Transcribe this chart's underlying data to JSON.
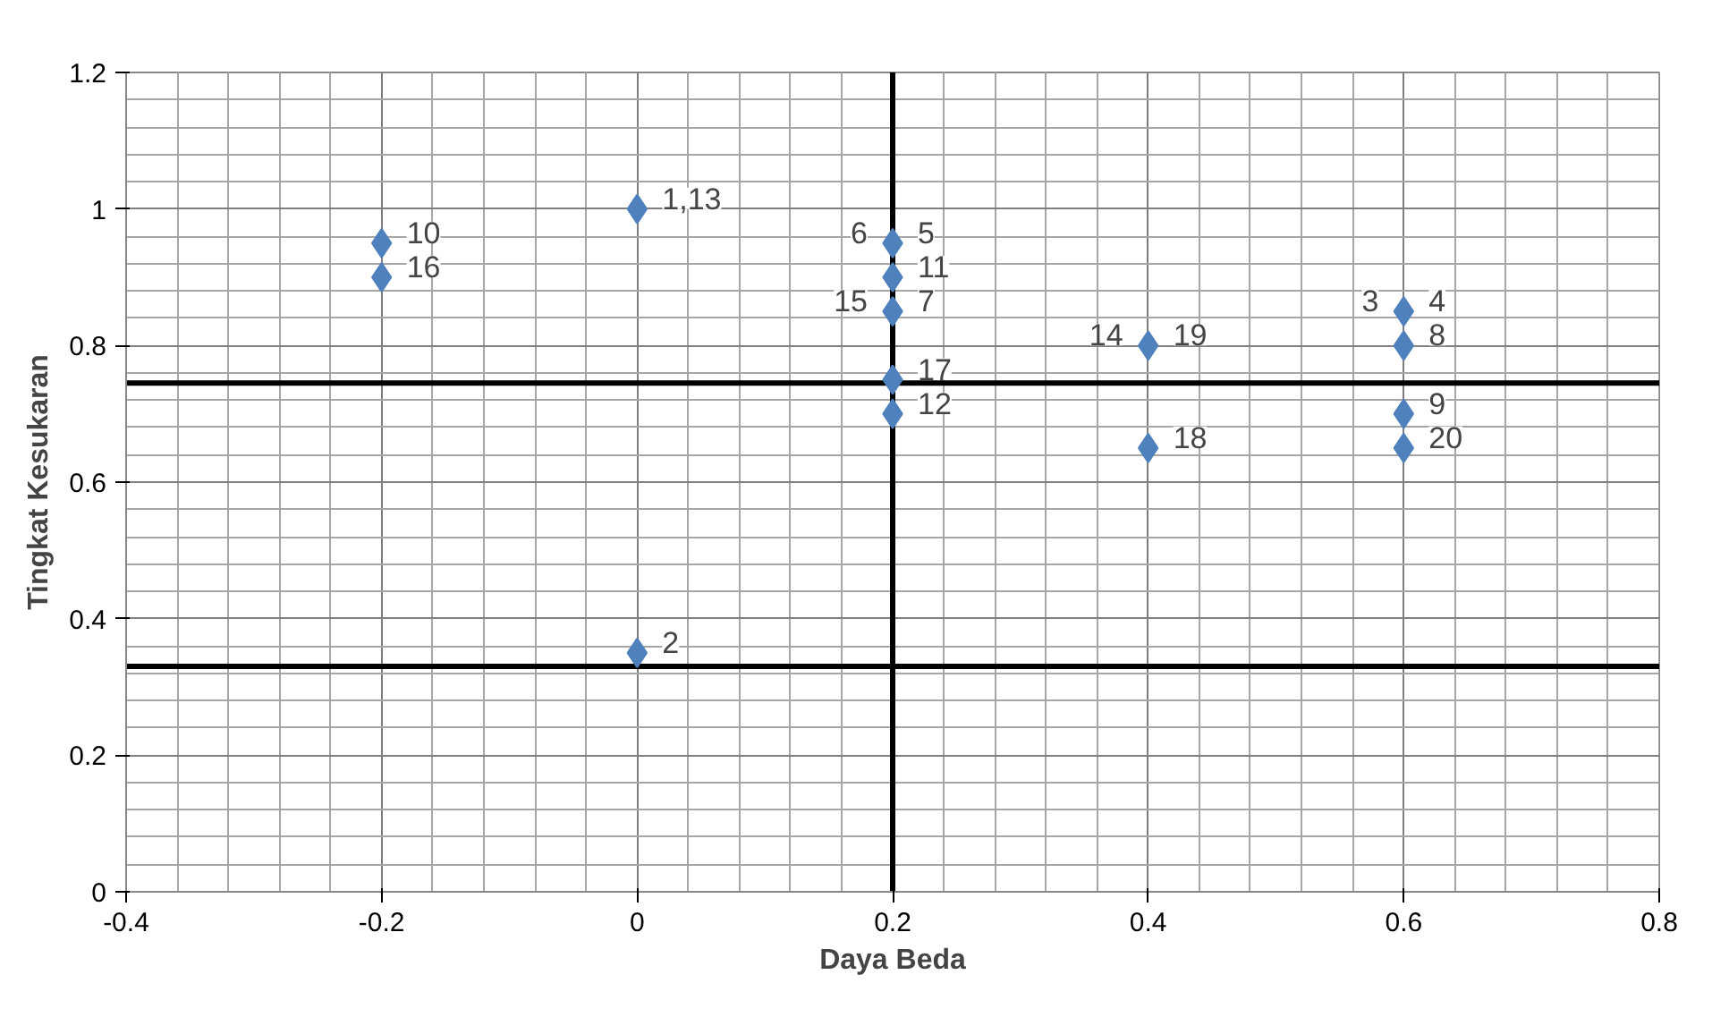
{
  "chart_data": {
    "type": "scatter",
    "xlabel": "Daya Beda",
    "ylabel": "Tingkat Kesukaran",
    "x": [
      -0.2,
      -0.2,
      0,
      0,
      0.2,
      0.2,
      0.2,
      0.2,
      0.2,
      0.4,
      0.4,
      0.6,
      0.6,
      0.6,
      0.6
    ],
    "values": [
      0.95,
      0.9,
      1,
      0.35,
      0.95,
      0.9,
      0.85,
      0.75,
      0.7,
      0.8,
      0.65,
      0.85,
      0.8,
      0.7,
      0.65
    ],
    "color": "#4f81bd",
    "marker": "diamond",
    "xlim": [
      -0.4,
      0.8
    ],
    "xticks": [
      -0.4,
      -0.2,
      0,
      0.2,
      0.4,
      0.6,
      0.8
    ],
    "ylim": [
      0,
      1.2
    ],
    "yticks": [
      0,
      0.2,
      0.4,
      0.6,
      0.8,
      1,
      1.2
    ],
    "grid": true,
    "ref_lines": [
      {
        "axis": "x",
        "value": 0.2,
        "color": "#000000"
      },
      {
        "axis": "y",
        "value": 0.745,
        "color": "#000000"
      },
      {
        "axis": "y",
        "value": 0.33,
        "color": "#000000"
      }
    ],
    "annotations": [
      {
        "text": "10",
        "x": -0.2,
        "y": 0.95
      },
      {
        "text": "16",
        "x": -0.2,
        "y": 0.9
      },
      {
        "text": "1,13",
        "x": 0,
        "y": 1
      },
      {
        "text": "5",
        "x": 0.2,
        "y": 0.95
      },
      {
        "text": "6",
        "x": 0.2,
        "y": 0.95
      },
      {
        "text": "11",
        "x": 0.2,
        "y": 0.9
      },
      {
        "text": "7",
        "x": 0.2,
        "y": 0.85
      },
      {
        "text": "15",
        "x": 0.2,
        "y": 0.85
      },
      {
        "text": "17",
        "x": 0.2,
        "y": 0.75
      },
      {
        "text": "12",
        "x": 0.2,
        "y": 0.7
      },
      {
        "text": "19",
        "x": 0.4,
        "y": 0.8
      },
      {
        "text": "14",
        "x": 0.4,
        "y": 0.8
      },
      {
        "text": "18",
        "x": 0.4,
        "y": 0.65
      },
      {
        "text": "4",
        "x": 0.6,
        "y": 0.85
      },
      {
        "text": "3",
        "x": 0.6,
        "y": 0.85
      },
      {
        "text": "8",
        "x": 0.6,
        "y": 0.8
      },
      {
        "text": "9",
        "x": 0.6,
        "y": 0.7
      },
      {
        "text": "20",
        "x": 0.6,
        "y": 0.65
      },
      {
        "text": "2",
        "x": 0,
        "y": 0.35
      }
    ]
  }
}
